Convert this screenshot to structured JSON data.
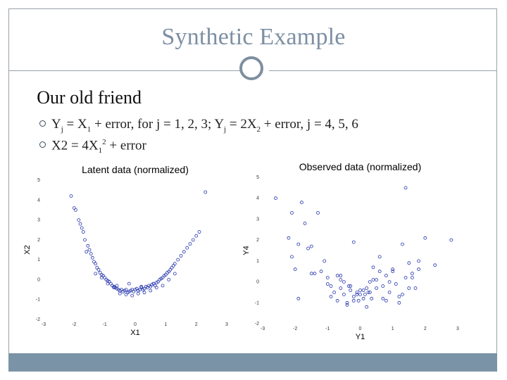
{
  "slide": {
    "title": "Synthetic Example",
    "heading": "Our old friend",
    "bullet1": {
      "t1": "Y",
      "s1": "j",
      "t2": " = X",
      "s2": "1",
      "t3": " + error, for j = 1, 2, 3; Y",
      "s3": "j",
      "t4": " = 2X",
      "s4": "2",
      "t5": " + error, j = 4, 5, 6"
    },
    "bullet2": {
      "t1": "X2 = 4X",
      "s1": "1",
      "p1": "2",
      "t2": " + error"
    },
    "colors": {
      "title": "#7d8fa3",
      "frame": "#9aa0a6",
      "footer": "#7b93a6",
      "marker": "#2233aa"
    }
  },
  "chart_data": [
    {
      "type": "scatter",
      "title": "Latent data (normalized)",
      "xlabel": "X1",
      "ylabel": "X2",
      "xlim": [
        -3,
        3
      ],
      "ylim": [
        -2,
        5
      ],
      "xticks": [
        "-3",
        "-2",
        "-1",
        "0",
        "1",
        "2",
        "3"
      ],
      "yticks": [
        "-2",
        "-1",
        "0",
        "1",
        "2",
        "3",
        "4",
        "5"
      ],
      "grid": false,
      "marker": "circle-open",
      "x": [
        -2.1,
        -2.0,
        -1.95,
        -1.85,
        -1.8,
        -1.75,
        -1.7,
        -1.65,
        -1.55,
        -1.5,
        -1.45,
        -1.4,
        -1.35,
        -1.3,
        -1.25,
        -1.2,
        -1.15,
        -1.1,
        -1.05,
        -1.0,
        -0.95,
        -0.9,
        -0.85,
        -0.8,
        -0.75,
        -0.7,
        -0.65,
        -0.6,
        -0.55,
        -0.5,
        -0.45,
        -0.4,
        -0.35,
        -0.3,
        -0.25,
        -0.2,
        -0.15,
        -0.1,
        -0.05,
        0.0,
        0.05,
        0.1,
        0.15,
        0.2,
        0.25,
        0.3,
        0.35,
        0.4,
        0.45,
        0.5,
        0.55,
        0.6,
        0.65,
        0.7,
        0.75,
        0.8,
        0.85,
        0.9,
        0.95,
        1.0,
        1.05,
        1.1,
        1.15,
        1.2,
        1.25,
        1.3,
        1.4,
        1.5,
        1.6,
        1.7,
        1.8,
        1.9,
        2.0,
        2.1,
        -1.3,
        -1.1,
        -0.9,
        -0.7,
        -0.5,
        -0.3,
        -0.1,
        0.1,
        0.3,
        0.5,
        0.7,
        0.9,
        1.1,
        1.3,
        -0.6,
        -0.2,
        0.2,
        0.6,
        2.3,
        -1.6
      ],
      "y": [
        4.2,
        3.6,
        3.5,
        3.0,
        2.8,
        2.6,
        2.4,
        2.0,
        1.7,
        1.5,
        1.3,
        1.1,
        0.9,
        0.8,
        0.6,
        0.5,
        0.35,
        0.25,
        0.2,
        0.1,
        0.0,
        -0.05,
        -0.1,
        -0.2,
        -0.3,
        -0.35,
        -0.4,
        -0.45,
        -0.5,
        -0.55,
        -0.5,
        -0.6,
        -0.55,
        -0.5,
        -0.65,
        -0.6,
        -0.55,
        -0.5,
        -0.6,
        -0.5,
        -0.45,
        -0.55,
        -0.5,
        -0.4,
        -0.5,
        -0.45,
        -0.35,
        -0.4,
        -0.3,
        -0.35,
        -0.25,
        -0.2,
        -0.3,
        -0.15,
        -0.1,
        0.0,
        0.05,
        0.1,
        0.2,
        0.25,
        0.35,
        0.4,
        0.5,
        0.6,
        0.7,
        0.8,
        1.0,
        1.2,
        1.4,
        1.6,
        1.8,
        2.0,
        2.2,
        2.4,
        0.3,
        0.1,
        -0.2,
        -0.4,
        -0.7,
        -0.75,
        -0.8,
        -0.7,
        -0.65,
        -0.55,
        -0.4,
        -0.3,
        0.0,
        0.3,
        -0.3,
        -0.2,
        -0.35,
        -0.2,
        4.4,
        1.4
      ]
    },
    {
      "type": "scatter",
      "title": "Observed data (normalized)",
      "xlabel": "Y1",
      "ylabel": "Y4",
      "xlim": [
        -3,
        3
      ],
      "ylim": [
        -2,
        5
      ],
      "xticks": [
        "-3",
        "-2",
        "-1",
        "0",
        "1",
        "2",
        "3"
      ],
      "yticks": [
        "-2",
        "-1",
        "0",
        "1",
        "2",
        "3",
        "4",
        "5"
      ],
      "grid": false,
      "marker": "circle-open",
      "x": [
        -2.6,
        -2.1,
        -1.8,
        -1.7,
        -2.0,
        -1.9,
        -1.5,
        -1.4,
        -1.2,
        -1.0,
        -0.9,
        -0.8,
        -0.7,
        -0.6,
        -0.5,
        -0.4,
        -0.3,
        -0.2,
        -0.1,
        0.0,
        0.1,
        0.2,
        0.3,
        0.4,
        0.5,
        0.6,
        0.7,
        0.8,
        0.9,
        1.0,
        1.1,
        1.2,
        1.3,
        1.4,
        1.5,
        1.6,
        1.7,
        1.8,
        2.0,
        2.3,
        2.8,
        -2.2,
        -1.6,
        -1.3,
        -1.1,
        -0.6,
        -0.3,
        0.3,
        0.8,
        1.2,
        1.6,
        -0.9,
        -0.5,
        -0.2,
        0.2,
        0.5,
        -2.1,
        -0.7,
        0.6,
        1.3,
        1.0,
        -1.9,
        -1.5,
        -0.4,
        0.4,
        0.7,
        1.8,
        -1.0,
        0.0,
        1.5,
        -0.1,
        0.1,
        -0.2,
        0.15,
        0.35,
        -0.35,
        -0.05,
        0.25,
        -0.6,
        0.9,
        1.4
      ],
      "y": [
        4.0,
        3.3,
        3.8,
        2.8,
        0.6,
        1.8,
        1.7,
        0.4,
        0.5,
        0.2,
        -0.2,
        -0.5,
        -0.9,
        -0.3,
        -0.6,
        -1.1,
        -0.4,
        -0.9,
        -0.6,
        -0.4,
        -0.8,
        -0.3,
        -0.5,
        0.7,
        0.1,
        0.5,
        -0.2,
        0.3,
        -0.5,
        0.6,
        -0.1,
        -0.7,
        1.8,
        0.2,
        0.9,
        0.4,
        -0.3,
        1.0,
        2.1,
        0.8,
        2.0,
        2.1,
        1.6,
        3.3,
        1.0,
        0.3,
        -0.2,
        0.0,
        -0.9,
        -1.0,
        0.2,
        -0.7,
        0.0,
        1.9,
        -1.2,
        -0.3,
        1.2,
        0.3,
        1.2,
        -0.6,
        0.5,
        -0.8,
        0.4,
        -1.0,
        0.1,
        -0.8,
        0.6,
        -0.1,
        -0.6,
        -0.3,
        -0.5,
        -0.4,
        -0.7,
        -0.6,
        -0.8,
        -0.2,
        -0.9,
        -0.5,
        0.1,
        0.0,
        4.5
      ]
    }
  ]
}
